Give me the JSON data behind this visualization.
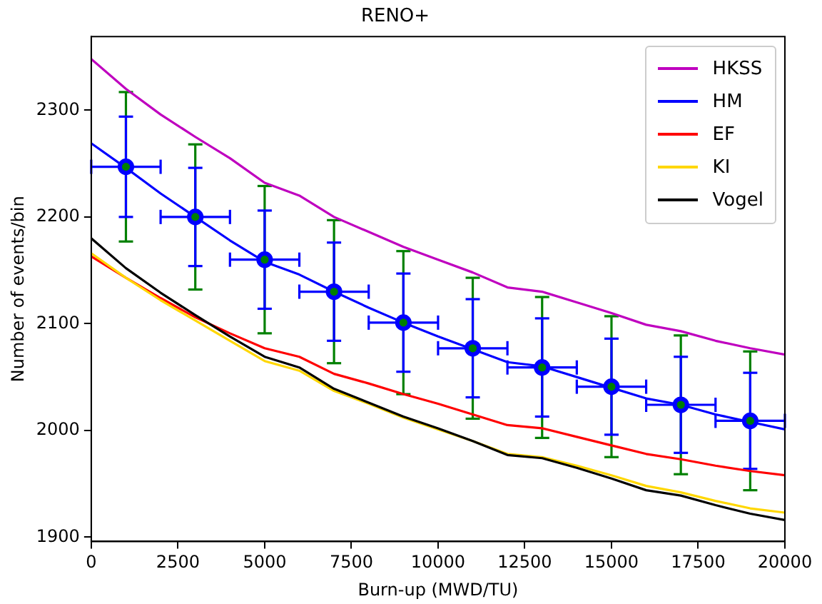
{
  "chart_data": {
    "type": "line",
    "title": "RENO+",
    "xlabel": "Burn-up (MWD/TU)",
    "ylabel": "Number of events/bin",
    "x": [
      0,
      1000,
      2000,
      3000,
      4000,
      5000,
      6000,
      7000,
      8000,
      9000,
      10000,
      11000,
      12000,
      13000,
      14000,
      15000,
      16000,
      17000,
      18000,
      19000,
      20000
    ],
    "series": [
      {
        "name": "HKSS",
        "color": "#bf00bf",
        "values": [
          2348,
          2320,
          2296,
          2275,
          2255,
          2232,
          2220,
          2200,
          2186,
          2172,
          2160,
          2148,
          2134,
          2130,
          2120,
          2110,
          2099,
          2093,
          2084,
          2077,
          2071
        ]
      },
      {
        "name": "HM",
        "color": "#0000ff",
        "values": [
          2269,
          2246,
          2222,
          2200,
          2178,
          2158,
          2146,
          2130,
          2115,
          2101,
          2088,
          2076,
          2064,
          2060,
          2050,
          2040,
          2030,
          2024,
          2015,
          2008,
          2001
        ]
      },
      {
        "name": "EF",
        "color": "#ff0000",
        "values": [
          2163,
          2143,
          2124,
          2106,
          2091,
          2077,
          2069,
          2053,
          2044,
          2034,
          2025,
          2015,
          2005,
          2002,
          1994,
          1986,
          1978,
          1973,
          1967,
          1962,
          1958
        ]
      },
      {
        "name": "KI",
        "color": "#ffd700",
        "values": [
          2166,
          2143,
          2122,
          2103,
          2084,
          2065,
          2056,
          2037,
          2025,
          2012,
          2001,
          1990,
          1978,
          1975,
          1967,
          1958,
          1948,
          1942,
          1934,
          1927,
          1923
        ]
      },
      {
        "name": "Vogel",
        "color": "#000000",
        "values": [
          2180,
          2152,
          2129,
          2108,
          2088,
          2069,
          2059,
          2039,
          2026,
          2013,
          2002,
          1990,
          1977,
          1974,
          1965,
          1955,
          1944,
          1939,
          1930,
          1922,
          1916
        ]
      },
      {
        "type": "scatter",
        "marker": "circle",
        "color": "#008000",
        "x": [
          1000,
          3000,
          5000,
          7000,
          9000,
          11000,
          13000,
          15000,
          17000,
          19000
        ],
        "values": [
          2247,
          2200,
          2160,
          2130,
          2101,
          2077,
          2059,
          2041,
          2024,
          2009
        ],
        "errors": [
          70,
          68,
          69,
          67,
          67,
          66,
          66,
          66,
          65,
          65
        ]
      },
      {
        "type": "scatter",
        "marker": "circle",
        "color": "#0000ff",
        "x": [
          1000,
          3000,
          5000,
          7000,
          9000,
          11000,
          13000,
          15000,
          17000,
          19000
        ],
        "values": [
          2247,
          2200,
          2160,
          2130,
          2101,
          2077,
          2059,
          2041,
          2024,
          2009
        ],
        "errors": [
          47,
          46,
          46,
          46,
          46,
          46,
          46,
          45,
          45,
          45
        ],
        "xerrors": [
          1000,
          1000,
          1000,
          1000,
          1000,
          1000,
          1000,
          1000,
          1000,
          1000
        ]
      }
    ],
    "xlim": [
      0,
      20000
    ],
    "xticks": [
      0,
      2500,
      5000,
      7500,
      10000,
      12500,
      15000,
      17500,
      20000
    ],
    "ylim": [
      1896,
      2369
    ],
    "yticks": [
      1900,
      2000,
      2100,
      2200,
      2300
    ],
    "legend": "top right",
    "marker": "none",
    "line_style": "solid"
  }
}
